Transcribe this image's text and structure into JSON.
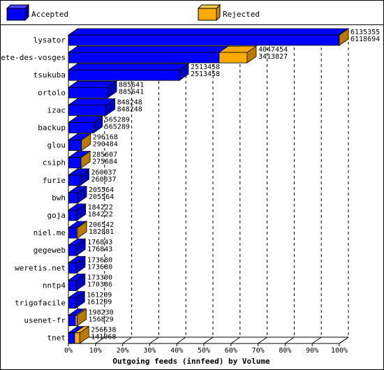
{
  "chart_data": {
    "type": "bar",
    "orientation": "horizontal",
    "style": "3d",
    "title": "",
    "xlabel": "Outgoing feeds (innfeed) by Volume",
    "ylabel": "",
    "xlim": [
      0,
      100
    ],
    "x_ticks": [
      "0%",
      "10%",
      "20%",
      "30%",
      "40%",
      "50%",
      "60%",
      "70%",
      "80%",
      "90%",
      "100%"
    ],
    "grid": true,
    "legend_position": "top",
    "categories": [
      "lysator",
      "bete-des-vosges",
      "tsukuba",
      "ortolo",
      "izac",
      "backup",
      "glou",
      "csiph",
      "furie",
      "bwh",
      "goja",
      "niel.me",
      "gegeweb",
      "weretis.net",
      "nntp4",
      "trigofacile",
      "usenet-fr",
      "tnet"
    ],
    "series": [
      {
        "name": "Accepted",
        "color": "#0000ff",
        "values": [
          6118694,
          3413827,
          2513458,
          885641,
          848248,
          565289,
          290484,
          275684,
          260037,
          205564,
          184222,
          182881,
          176843,
          173680,
          170386,
          161209,
          156829,
          141068
        ]
      },
      {
        "name": "Rejected",
        "color": "#ffaa00",
        "values": [
          6135355,
          4047454,
          2513458,
          885641,
          848248,
          565289,
          296168,
          285607,
          260037,
          205564,
          184222,
          206542,
          176843,
          173680,
          173300,
          161209,
          198230,
          256638
        ]
      }
    ]
  }
}
